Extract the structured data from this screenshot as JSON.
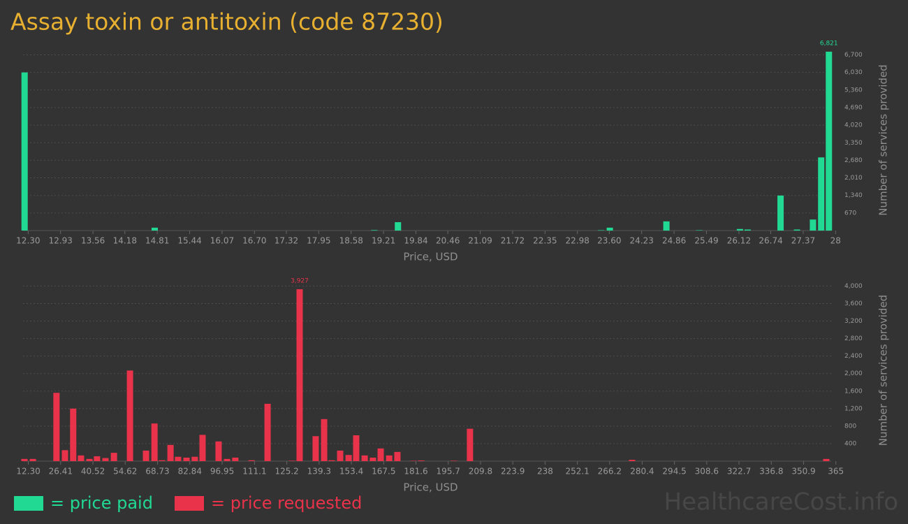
{
  "title": "Assay toxin or antitoxin (code 87230)",
  "chart_data": [
    {
      "type": "bar",
      "color": "#21d993",
      "xlabel": "Price, USD",
      "ylabel": "Number of services provided",
      "grid": true,
      "x": [
        12.23,
        14.76,
        19.03,
        19.49,
        23.44,
        23.61,
        24.71,
        25.35,
        26.14,
        26.29,
        26.93,
        27.25,
        27.56,
        27.72,
        27.87
      ],
      "values": [
        6030,
        110,
        20,
        320,
        15,
        110,
        350,
        15,
        60,
        40,
        1335,
        40,
        420,
        2790,
        6821
      ],
      "value_labels": [
        null,
        null,
        null,
        null,
        null,
        null,
        null,
        null,
        null,
        null,
        null,
        null,
        null,
        null,
        "6,821"
      ],
      "xlim": [
        12.2,
        28.05
      ],
      "ylim": [
        0,
        6900
      ],
      "xticks": [
        {
          "value": 12.3,
          "label": "12.30"
        },
        12.93,
        13.56,
        14.18,
        14.81,
        15.44,
        16.07,
        {
          "value": 16.7,
          "label": "16.70"
        },
        17.32,
        17.95,
        18.58,
        19.21,
        19.84,
        20.46,
        21.09,
        21.72,
        22.35,
        22.98,
        {
          "value": 23.6,
          "label": "23.60"
        },
        24.23,
        24.86,
        25.49,
        26.12,
        26.74,
        27.37,
        28
      ],
      "yticks": [
        670,
        {
          "value": 1340,
          "label": "1,340"
        },
        {
          "value": 2010,
          "label": "2,010"
        },
        {
          "value": 2680,
          "label": "2,680"
        },
        {
          "value": 3350,
          "label": "3,350"
        },
        {
          "value": 4020,
          "label": "4,020"
        },
        {
          "value": 4690,
          "label": "4,690"
        },
        {
          "value": 5360,
          "label": "5,360"
        },
        {
          "value": 6030,
          "label": "6,030"
        },
        {
          "value": 6700,
          "label": "6,700"
        }
      ]
    },
    {
      "type": "bar",
      "color": "#e8334a",
      "xlabel": "Price, USD",
      "ylabel": "Number of services provided",
      "grid": true,
      "x": [
        10.6,
        14.3,
        24.6,
        28.3,
        31.9,
        35.3,
        39.0,
        42.3,
        46.0,
        49.7,
        56.7,
        63.7,
        67.4,
        70.7,
        74.4,
        77.7,
        81.4,
        85.0,
        88.4,
        95.4,
        99.1,
        102.7,
        109.8,
        116.8,
        127.5,
        130.8,
        137.8,
        141.5,
        144.8,
        148.5,
        152.2,
        155.5,
        159.2,
        162.8,
        166.2,
        169.9,
        173.5,
        180.5,
        183.9,
        198.2,
        205.2,
        276.0,
        360.8
      ],
      "values": [
        50,
        50,
        1560,
        250,
        1200,
        130,
        50,
        110,
        70,
        190,
        2070,
        240,
        860,
        20,
        370,
        100,
        80,
        100,
        600,
        450,
        50,
        80,
        20,
        1310,
        10,
        3927,
        570,
        960,
        20,
        240,
        140,
        590,
        130,
        80,
        290,
        130,
        210,
        8,
        15,
        10,
        740,
        30,
        50
      ],
      "value_labels": [
        null,
        null,
        null,
        null,
        null,
        null,
        null,
        null,
        null,
        null,
        null,
        null,
        null,
        null,
        null,
        null,
        null,
        null,
        null,
        null,
        null,
        null,
        null,
        null,
        null,
        "3,927",
        null,
        null,
        null,
        null,
        null,
        null,
        null,
        null,
        null,
        null,
        null,
        null,
        null,
        null,
        null,
        null,
        null
      ],
      "xlim": [
        10,
        366
      ],
      "ylim": [
        0,
        4150
      ],
      "xticks": [
        {
          "value": 12.3,
          "label": "12.30"
        },
        26.41,
        40.52,
        54.62,
        68.73,
        82.84,
        96.95,
        111.1,
        125.2,
        139.3,
        153.4,
        167.5,
        181.6,
        195.7,
        209.8,
        223.9,
        238,
        252.1,
        266.2,
        280.4,
        294.5,
        308.6,
        322.7,
        336.8,
        350.9,
        365
      ],
      "yticks": [
        400,
        800,
        {
          "value": 1200,
          "label": "1,200"
        },
        {
          "value": 1600,
          "label": "1,600"
        },
        {
          "value": 2000,
          "label": "2,000"
        },
        {
          "value": 2400,
          "label": "2,400"
        },
        {
          "value": 2800,
          "label": "2,800"
        },
        {
          "value": 3200,
          "label": "3,200"
        },
        {
          "value": 3600,
          "label": "3,600"
        },
        {
          "value": 4000,
          "label": "4,000"
        }
      ]
    }
  ],
  "legend": [
    {
      "label": "= price paid",
      "color": "#21d993"
    },
    {
      "label": "= price requested",
      "color": "#e8334a"
    }
  ],
  "watermark": "HealthcareCost.info"
}
